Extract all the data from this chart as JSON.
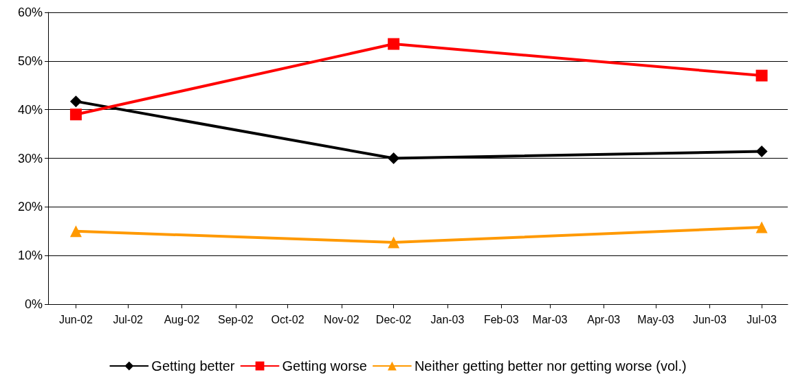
{
  "chart_data": {
    "type": "line",
    "x": [
      "2002-06",
      "2002-12",
      "2003-07"
    ],
    "series": [
      {
        "name": "Getting better",
        "color": "#000000",
        "marker": "diamond",
        "values": [
          41.7,
          30,
          31.4
        ]
      },
      {
        "name": "Getting worse",
        "color": "#ff0000",
        "marker": "square",
        "values": [
          39,
          53.5,
          47
        ]
      },
      {
        "name": "Neither getting better nor getting worse (vol.)",
        "color": "#ff9900",
        "marker": "triangle",
        "values": [
          15,
          12.7,
          15.8
        ]
      }
    ],
    "xlim": [
      "2002-05-16",
      "2003-07-16"
    ],
    "xticks": [
      {
        "value": "2002-06",
        "label": "Jun-02"
      },
      {
        "value": "2002-07",
        "label": "Jul-02"
      },
      {
        "value": "2002-08",
        "label": "Aug-02"
      },
      {
        "value": "2002-09",
        "label": "Sep-02"
      },
      {
        "value": "2002-10",
        "label": "Oct-02"
      },
      {
        "value": "2002-11",
        "label": "Nov-02"
      },
      {
        "value": "2002-12",
        "label": "Dec-02"
      },
      {
        "value": "2003-01",
        "label": "Jan-03"
      },
      {
        "value": "2003-02",
        "label": "Feb-03"
      },
      {
        "value": "2003-03",
        "label": "Mar-03"
      },
      {
        "value": "2003-04",
        "label": "Apr-03"
      },
      {
        "value": "2003-05",
        "label": "May-03"
      },
      {
        "value": "2003-06",
        "label": "Jun-03"
      },
      {
        "value": "2003-07",
        "label": "Jul-03"
      }
    ],
    "ylim": [
      0,
      60
    ],
    "yticks": [
      {
        "value": 0,
        "label": "0%"
      },
      {
        "value": 10,
        "label": "10%"
      },
      {
        "value": 20,
        "label": "20%"
      },
      {
        "value": 30,
        "label": "30%"
      },
      {
        "value": 40,
        "label": "40%"
      },
      {
        "value": 50,
        "label": "50%"
      },
      {
        "value": 60,
        "label": "60%"
      }
    ],
    "grid": "y",
    "legend": "bottom",
    "line_style": "solid"
  }
}
